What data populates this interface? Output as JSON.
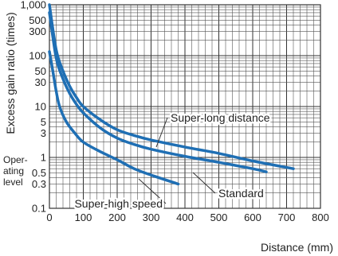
{
  "chart_data": {
    "type": "line",
    "title": "",
    "xlabel": "Distance (mm)",
    "ylabel": "Excess gain ratio (times)",
    "side_label": "Oper-\nating\nlevel",
    "y_scale": "log",
    "xlim": [
      0,
      800
    ],
    "ylim": [
      0.1,
      1000
    ],
    "grid": true,
    "x_ticks": [
      "0",
      "100",
      "200",
      "300",
      "400",
      "500",
      "600",
      "700",
      "800"
    ],
    "y_ticks": [
      "0.1",
      "0.3",
      "0.5",
      "1",
      "3",
      "5",
      "10",
      "30",
      "50",
      "100",
      "300",
      "500",
      "1,000"
    ],
    "line_color": "#1f6fb4",
    "series": [
      {
        "name": "Super-long distance",
        "x": [
          0,
          20,
          40,
          60,
          80,
          100,
          150,
          200,
          250,
          300,
          400,
          500,
          600,
          720
        ],
        "y": [
          1000,
          130,
          50,
          25,
          15,
          10,
          5.5,
          3.5,
          2.7,
          2.2,
          1.6,
          1.2,
          0.85,
          0.6
        ]
      },
      {
        "name": "Standard",
        "x": [
          0,
          20,
          40,
          60,
          80,
          100,
          150,
          200,
          250,
          300,
          400,
          500,
          600,
          640
        ],
        "y": [
          700,
          90,
          35,
          18,
          11,
          7.5,
          3.8,
          2.4,
          1.8,
          1.45,
          1.05,
          0.8,
          0.6,
          0.52
        ]
      },
      {
        "name": "Super-high speed",
        "x": [
          0,
          10,
          20,
          30,
          50,
          75,
          100,
          150,
          200,
          250,
          300,
          380
        ],
        "y": [
          120,
          50,
          20,
          10,
          5,
          3,
          2,
          1.3,
          0.9,
          0.6,
          0.45,
          0.3
        ]
      }
    ],
    "annotations": [
      {
        "text": "Super-long distance",
        "series": "Super-long distance"
      },
      {
        "text": "Standard",
        "series": "Standard"
      },
      {
        "text": "Super-high speed",
        "series": "Super-high speed"
      }
    ]
  }
}
